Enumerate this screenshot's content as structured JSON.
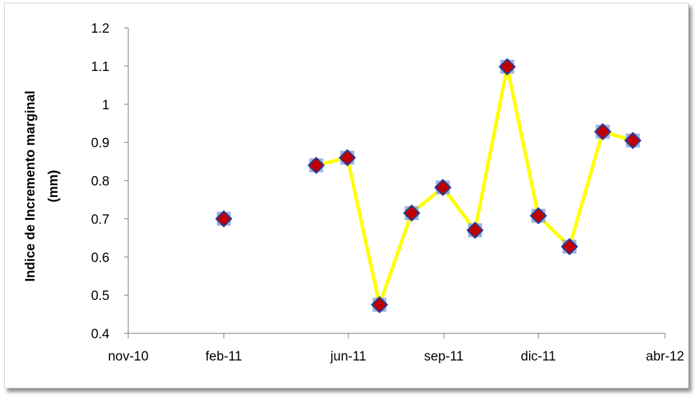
{
  "chart_data": {
    "type": "line",
    "title": "",
    "xlabel": "",
    "ylabel": "Indice de Incremento marginal (mm)",
    "ylabel_lines": [
      "Indice de Incremento marginal",
      "(mm)"
    ],
    "xlim": [
      "2010-11-01",
      "2012-04-01"
    ],
    "ylim": [
      0.4,
      1.2
    ],
    "y_ticks": [
      "0.4",
      "0.5",
      "0.6",
      "0.7",
      "0.8",
      "0.9",
      "1",
      "1.1",
      "1.2"
    ],
    "x_ticks": [
      {
        "date": "2010-11-01",
        "label": "nov-10"
      },
      {
        "date": "2011-02-01",
        "label": "feb-11"
      },
      {
        "date": "2011-06-01",
        "label": "jun-11"
      },
      {
        "date": "2011-09-01",
        "label": "sep-11"
      },
      {
        "date": "2011-12-01",
        "label": "dic-11"
      },
      {
        "date": "2012-04-01",
        "label": "abr-12"
      }
    ],
    "grid": false,
    "legend": "none",
    "colors": {
      "line": "#ffff00",
      "marker_fill": "#c00000",
      "marker_edge": "#1f3f9f",
      "marker_shadow": "#8ea6d8"
    },
    "series": [
      {
        "segments": [
          [
            {
              "x": "2011-02-01",
              "y": 0.7
            }
          ],
          [
            {
              "x": "2011-05-01",
              "y": 0.84
            },
            {
              "x": "2011-05-31",
              "y": 0.86
            },
            {
              "x": "2011-07-01",
              "y": 0.475
            },
            {
              "x": "2011-08-01",
              "y": 0.715
            },
            {
              "x": "2011-08-31",
              "y": 0.782
            },
            {
              "x": "2011-10-01",
              "y": 0.67
            },
            {
              "x": "2011-11-01",
              "y": 1.098
            },
            {
              "x": "2011-12-01",
              "y": 0.708
            },
            {
              "x": "2011-12-31",
              "y": 0.627
            },
            {
              "x": "2012-02-01",
              "y": 0.928
            },
            {
              "x": "2012-03-01",
              "y": 0.905
            }
          ]
        ]
      }
    ]
  }
}
